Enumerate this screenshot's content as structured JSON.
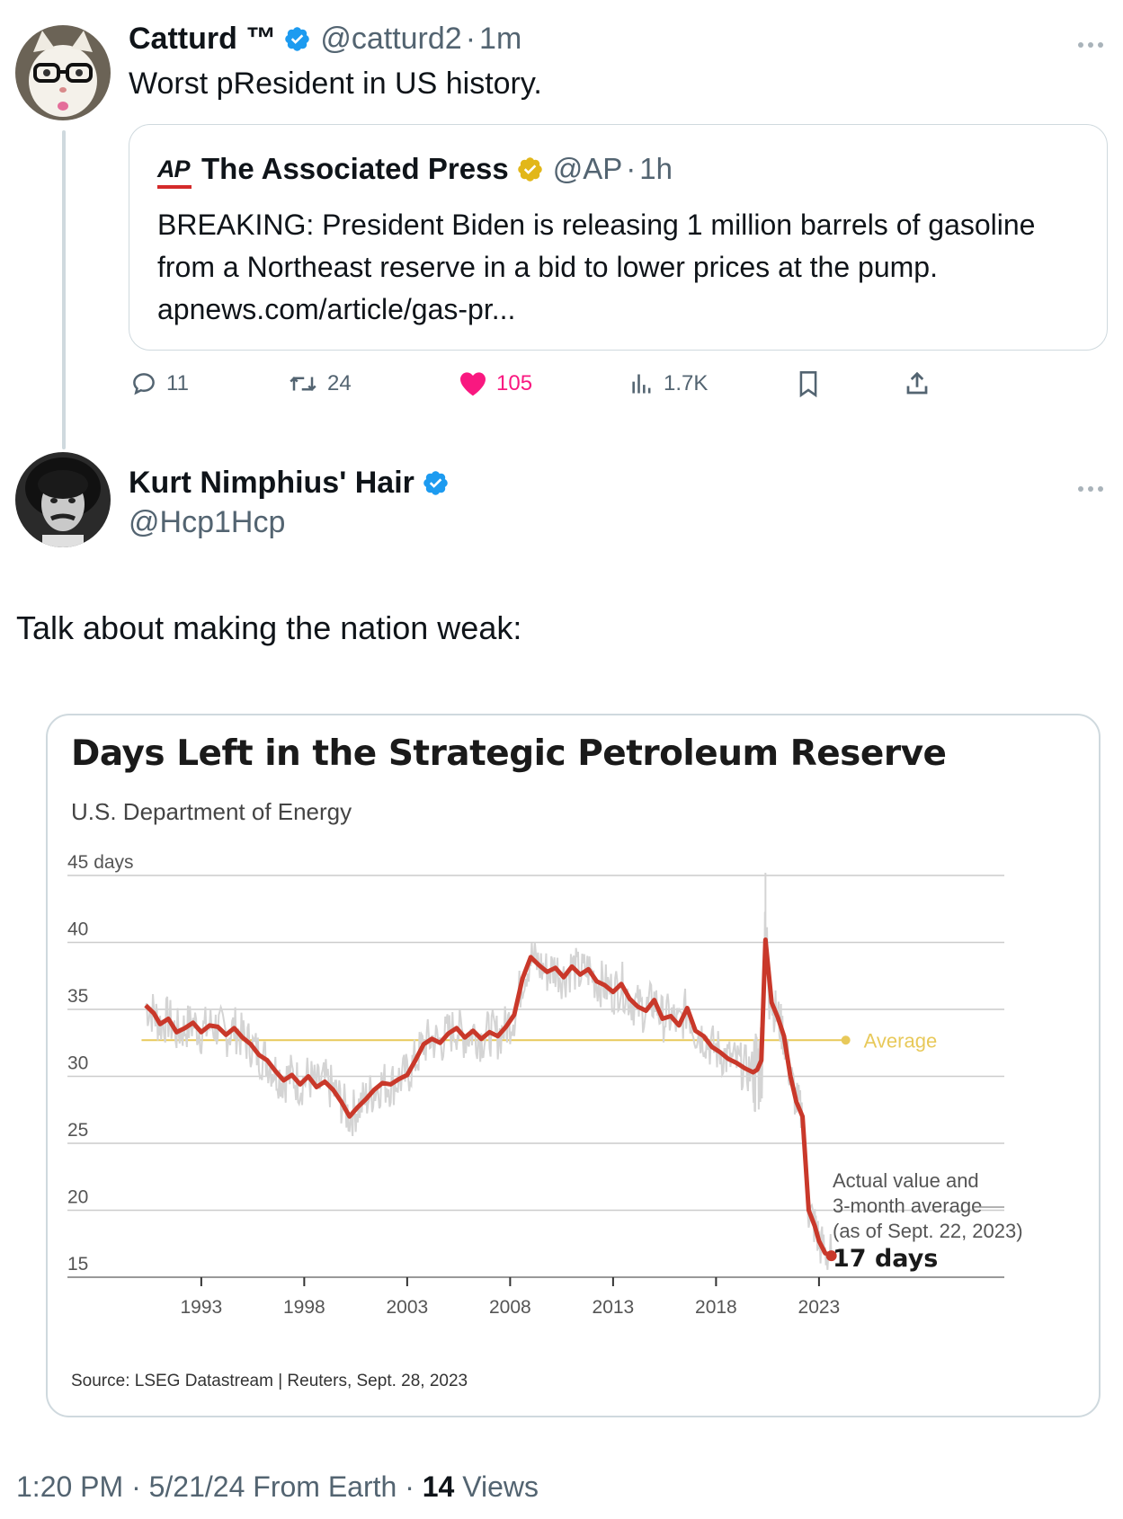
{
  "tweet1": {
    "display_name": "Catturd ™",
    "handle": "@catturd2",
    "time": "1m",
    "text": "Worst pResident in US history.",
    "quote": {
      "logo_text": "AP",
      "display_name": "The Associated Press",
      "handle": "@AP",
      "time": "1h",
      "lines": [
        "BREAKING: President Biden is releasing 1 million barrels of gasoline",
        "from a Northeast reserve in a bid to lower prices at the pump.",
        " apnews.com/article/gas-pr..."
      ]
    },
    "actions": {
      "replies": "11",
      "reposts": "24",
      "likes": "105",
      "views": "1.7K"
    }
  },
  "tweet2": {
    "display_name": "Kurt Nimphius' Hair",
    "handle": "@Hcp1Hcp",
    "text": "Talk about making the nation weak:"
  },
  "chart_data": {
    "type": "line",
    "title": "Days Left in the Strategic Petroleum Reserve",
    "subtitle": "U.S. Department of Energy",
    "source": "Source: LSEG Datastream | Reuters, Sept. 28, 2023",
    "y_tick_labels": [
      "45 days",
      "40",
      "35",
      "30",
      "25",
      "20",
      "15"
    ],
    "y_ticks": [
      45,
      40,
      35,
      30,
      25,
      20,
      15
    ],
    "ylim": [
      15,
      45
    ],
    "x_tick_labels": [
      "1993",
      "1998",
      "2003",
      "2008",
      "2013",
      "2018",
      "2023"
    ],
    "x_ticks": [
      1993,
      1998,
      2003,
      2008,
      2013,
      2018,
      2023
    ],
    "xlim": [
      1986.5,
      2032
    ],
    "average": {
      "label": "Average",
      "value": 32.7
    },
    "annotation": {
      "lines": [
        "Actual value and",
        "3-month average",
        "(as of Sept. 22, 2023)"
      ],
      "value_label": "17 days"
    },
    "colors": {
      "average_line": "#e8c95a",
      "series_3mo": "#c9382a",
      "series_actual": "#d4d4d4",
      "grid": "#cccccc"
    },
    "series": [
      {
        "name": "3-month average",
        "x": [
          1990.3,
          1990.7,
          1991.0,
          1991.4,
          1991.8,
          1992.2,
          1992.6,
          1993.0,
          1993.4,
          1993.8,
          1994.2,
          1994.6,
          1995.0,
          1995.4,
          1995.8,
          1996.2,
          1996.6,
          1997.0,
          1997.4,
          1997.8,
          1998.2,
          1998.6,
          1999.0,
          1999.4,
          1999.8,
          2000.2,
          2000.6,
          2001.0,
          2001.4,
          2001.8,
          2002.2,
          2002.6,
          2003.0,
          2003.4,
          2003.8,
          2004.2,
          2004.6,
          2005.0,
          2005.4,
          2005.8,
          2006.2,
          2006.6,
          2007.0,
          2007.4,
          2007.8,
          2008.2,
          2008.6,
          2009.0,
          2009.4,
          2009.8,
          2010.2,
          2010.6,
          2011.0,
          2011.4,
          2011.8,
          2012.2,
          2012.6,
          2013.0,
          2013.4,
          2013.8,
          2014.2,
          2014.6,
          2015.0,
          2015.4,
          2015.8,
          2016.2,
          2016.6,
          2017.0,
          2017.4,
          2017.8,
          2018.2,
          2018.6,
          2019.0,
          2019.4,
          2019.8,
          2020.0,
          2020.2,
          2020.4,
          2020.7,
          2021.0,
          2021.3,
          2021.6,
          2021.9,
          2022.2,
          2022.5,
          2022.8,
          2023.0,
          2023.3,
          2023.6
        ],
        "values": [
          35.3,
          34.7,
          33.9,
          34.3,
          33.3,
          33.6,
          34.0,
          33.3,
          33.8,
          33.7,
          33.1,
          33.6,
          32.9,
          32.4,
          31.6,
          31.2,
          30.4,
          29.7,
          30.1,
          29.4,
          30.0,
          29.2,
          29.6,
          29.0,
          28.1,
          27.0,
          27.7,
          28.3,
          29.0,
          29.5,
          29.4,
          29.8,
          30.1,
          31.2,
          32.4,
          32.8,
          32.5,
          33.2,
          33.6,
          32.9,
          33.4,
          32.8,
          33.3,
          33.0,
          33.7,
          34.6,
          37.3,
          38.9,
          38.3,
          37.8,
          38.1,
          37.4,
          38.2,
          37.6,
          38.0,
          37.1,
          36.8,
          36.3,
          36.9,
          35.8,
          35.2,
          34.9,
          35.7,
          34.3,
          34.5,
          33.8,
          35.1,
          33.4,
          33.0,
          32.2,
          31.8,
          31.3,
          31.0,
          30.6,
          30.3,
          30.5,
          31.2,
          40.2,
          35.5,
          34.4,
          33.0,
          30.1,
          28.1,
          27.0,
          20.0,
          18.8,
          17.7,
          16.8,
          16.6
        ]
      }
    ]
  },
  "footer": {
    "time": "1:20 PM",
    "date": "5/21/24",
    "source": "From Earth",
    "views_count": "14",
    "views_label": "Views"
  }
}
